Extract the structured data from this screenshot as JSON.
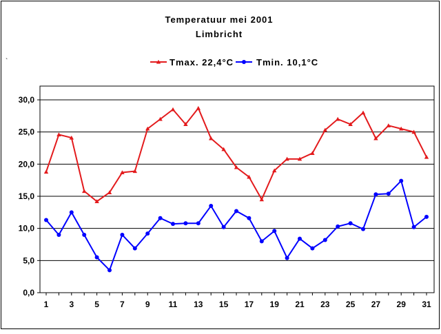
{
  "chart_data": {
    "type": "line",
    "title": "Temperatuur mei 2001",
    "subtitle": "Limbricht",
    "corner_mark": "`",
    "x": [
      1,
      2,
      3,
      4,
      5,
      6,
      7,
      8,
      9,
      10,
      11,
      12,
      13,
      14,
      15,
      16,
      17,
      18,
      19,
      20,
      21,
      22,
      23,
      24,
      25,
      26,
      27,
      28,
      29,
      30,
      31
    ],
    "x_tick_labels": [
      "1",
      "3",
      "5",
      "7",
      "9",
      "11",
      "13",
      "15",
      "17",
      "19",
      "21",
      "23",
      "25",
      "27",
      "29",
      "31"
    ],
    "x_tick_values": [
      1,
      3,
      5,
      7,
      9,
      11,
      13,
      15,
      17,
      19,
      21,
      23,
      25,
      27,
      29,
      31
    ],
    "y_tick_labels": [
      "0,0",
      "5,0",
      "10,0",
      "15,0",
      "20,0",
      "25,0",
      "30,0"
    ],
    "y_tick_values": [
      0,
      5,
      10,
      15,
      20,
      25,
      30
    ],
    "xlim": [
      1,
      31
    ],
    "ylim": [
      0,
      30
    ],
    "grid": "horizontal",
    "legend_position": "top-center",
    "series": [
      {
        "name": "Tmax. 22,4°C",
        "color": "#e31a1c",
        "marker": "triangle",
        "values": [
          18.8,
          24.6,
          24.1,
          15.8,
          14.2,
          15.6,
          18.7,
          18.9,
          25.5,
          27.0,
          28.5,
          26.2,
          28.7,
          24.0,
          22.3,
          19.5,
          18.0,
          14.5,
          19.0,
          20.8,
          20.8,
          21.7,
          25.3,
          27.0,
          26.2,
          28.0,
          24.0,
          26.0,
          25.5,
          25.0,
          21.1
        ]
      },
      {
        "name": "Tmin. 10,1°C",
        "color": "#0000ff",
        "marker": "circle",
        "values": [
          11.3,
          9.0,
          12.5,
          9.0,
          5.5,
          3.5,
          9.0,
          6.9,
          9.2,
          11.6,
          10.7,
          10.8,
          10.8,
          13.5,
          10.2,
          12.7,
          11.6,
          8.0,
          9.6,
          5.4,
          8.4,
          6.9,
          8.2,
          10.3,
          10.8,
          9.9,
          15.3,
          15.4,
          17.4,
          10.2,
          11.8
        ]
      }
    ]
  }
}
